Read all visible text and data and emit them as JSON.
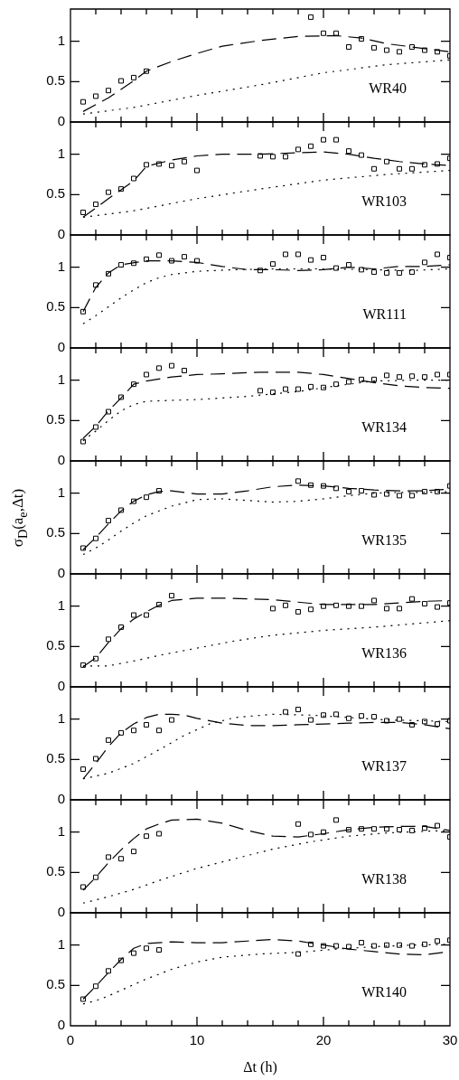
{
  "chart_data": [
    {
      "type": "line",
      "annotations": [
        "WR40"
      ],
      "xlim": [
        0,
        30
      ],
      "xticks": [
        0,
        {
          "value": 2,
          "label": null
        },
        {
          "value": 4,
          "label": null
        },
        {
          "value": 6,
          "label": null
        },
        {
          "value": 8,
          "label": null
        },
        10,
        {
          "value": 12,
          "label": null
        },
        {
          "value": 14,
          "label": null
        },
        {
          "value": 16,
          "label": null
        },
        {
          "value": 18,
          "label": null
        },
        20,
        {
          "value": 22,
          "label": null
        },
        {
          "value": 24,
          "label": null
        },
        {
          "value": 26,
          "label": null
        },
        {
          "value": 28,
          "label": null
        },
        30
      ],
      "ylim": [
        0,
        1.4
      ],
      "yticks": [
        0,
        0.5,
        1
      ],
      "tick_labels": "y",
      "series": [
        {
          "type": "scatter",
          "marker": "square",
          "color": "#000000",
          "x": [
            1,
            2,
            3,
            4,
            5,
            6,
            19,
            20,
            21,
            22,
            23,
            24,
            25,
            26,
            27,
            28,
            29,
            30
          ],
          "values": [
            0.25,
            0.32,
            0.39,
            0.51,
            0.55,
            0.63,
            1.3,
            1.1,
            1.1,
            0.93,
            1.03,
            0.92,
            0.89,
            0.87,
            0.93,
            0.89,
            0.87,
            0.82
          ]
        },
        {
          "line_style": "dashed",
          "marker": "none",
          "color": "#000000",
          "x": [
            1,
            3,
            5,
            6,
            8,
            10,
            12,
            15,
            18,
            21,
            23,
            25,
            27,
            30
          ],
          "values": [
            0.13,
            0.3,
            0.51,
            0.63,
            0.75,
            0.85,
            0.94,
            1.01,
            1.06,
            1.07,
            1.04,
            0.97,
            0.93,
            0.87
          ]
        },
        {
          "line_style": "dotted",
          "marker": "none",
          "color": "#000000",
          "x": [
            1,
            5,
            10,
            15,
            20,
            25,
            30
          ],
          "values": [
            0.1,
            0.18,
            0.33,
            0.46,
            0.61,
            0.71,
            0.77
          ]
        }
      ]
    },
    {
      "type": "line",
      "annotations": [
        "WR103"
      ],
      "xlim": [
        0,
        30
      ],
      "xticks": [
        0,
        {
          "value": 2,
          "label": null
        },
        {
          "value": 4,
          "label": null
        },
        {
          "value": 6,
          "label": null
        },
        {
          "value": 8,
          "label": null
        },
        10,
        {
          "value": 12,
          "label": null
        },
        {
          "value": 14,
          "label": null
        },
        {
          "value": 16,
          "label": null
        },
        {
          "value": 18,
          "label": null
        },
        20,
        {
          "value": 22,
          "label": null
        },
        {
          "value": 24,
          "label": null
        },
        {
          "value": 26,
          "label": null
        },
        {
          "value": 28,
          "label": null
        },
        30
      ],
      "ylim": [
        0,
        1.4
      ],
      "yticks": [
        0,
        0.5,
        1
      ],
      "tick_labels": "y",
      "series": [
        {
          "type": "scatter",
          "marker": "square",
          "color": "#000000",
          "x": [
            1,
            2,
            3,
            4,
            5,
            6,
            7,
            8,
            9,
            10,
            15,
            16,
            17,
            18,
            19,
            20,
            21,
            22,
            23,
            24,
            25,
            26,
            27,
            28,
            29,
            30
          ],
          "values": [
            0.28,
            0.38,
            0.53,
            0.57,
            0.7,
            0.87,
            0.88,
            0.86,
            0.91,
            0.8,
            0.98,
            0.97,
            0.97,
            1.06,
            1.1,
            1.18,
            1.18,
            1.04,
            0.99,
            0.82,
            0.91,
            0.82,
            0.82,
            0.87,
            0.88,
            0.95
          ]
        },
        {
          "line_style": "dashed",
          "marker": "none",
          "color": "#000000",
          "x": [
            1,
            3,
            5,
            6,
            8,
            10,
            12,
            15,
            18,
            20,
            22,
            24,
            26,
            28,
            30
          ],
          "values": [
            0.22,
            0.45,
            0.67,
            0.85,
            0.93,
            0.98,
            1.0,
            1.0,
            1.02,
            1.03,
            1.0,
            0.95,
            0.91,
            0.88,
            0.86
          ]
        },
        {
          "line_style": "dotted",
          "marker": "none",
          "color": "#000000",
          "x": [
            1,
            5,
            10,
            15,
            20,
            25,
            30
          ],
          "values": [
            0.22,
            0.3,
            0.45,
            0.57,
            0.68,
            0.75,
            0.8
          ]
        }
      ]
    },
    {
      "type": "line",
      "annotations": [
        "WR111"
      ],
      "xlim": [
        0,
        30
      ],
      "xticks": [
        0,
        {
          "value": 2,
          "label": null
        },
        {
          "value": 4,
          "label": null
        },
        {
          "value": 6,
          "label": null
        },
        {
          "value": 8,
          "label": null
        },
        10,
        {
          "value": 12,
          "label": null
        },
        {
          "value": 14,
          "label": null
        },
        {
          "value": 16,
          "label": null
        },
        {
          "value": 18,
          "label": null
        },
        20,
        {
          "value": 22,
          "label": null
        },
        {
          "value": 24,
          "label": null
        },
        {
          "value": 26,
          "label": null
        },
        {
          "value": 28,
          "label": null
        },
        30
      ],
      "ylim": [
        0,
        1.4
      ],
      "yticks": [
        0,
        0.5,
        1
      ],
      "tick_labels": "y",
      "series": [
        {
          "type": "scatter",
          "marker": "square",
          "color": "#000000",
          "x": [
            1,
            2,
            3,
            4,
            5,
            6,
            7,
            8,
            9,
            10,
            15,
            16,
            17,
            18,
            19,
            20,
            21,
            22,
            23,
            24,
            25,
            26,
            27,
            28,
            29,
            30
          ],
          "values": [
            0.45,
            0.78,
            0.92,
            1.03,
            1.05,
            1.1,
            1.15,
            1.08,
            1.13,
            1.08,
            0.96,
            1.04,
            1.16,
            1.16,
            1.09,
            1.12,
            0.99,
            1.03,
            0.97,
            0.94,
            0.93,
            0.93,
            0.94,
            1.06,
            1.16,
            1.12
          ]
        },
        {
          "line_style": "dashed",
          "marker": "none",
          "color": "#000000",
          "x": [
            1,
            2,
            3,
            4,
            6,
            8,
            10,
            12,
            14,
            16,
            18,
            20,
            22,
            24,
            26,
            28,
            30
          ],
          "values": [
            0.45,
            0.75,
            0.93,
            1.03,
            1.08,
            1.08,
            1.06,
            1.01,
            0.97,
            0.97,
            0.96,
            0.97,
            1.0,
            0.98,
            1.01,
            1.01,
            1.03
          ]
        },
        {
          "line_style": "dotted",
          "marker": "none",
          "color": "#000000",
          "x": [
            1,
            2,
            3,
            4,
            5,
            6,
            7,
            8,
            10,
            13,
            16,
            20,
            24,
            27,
            30
          ],
          "values": [
            0.3,
            0.4,
            0.51,
            0.62,
            0.72,
            0.81,
            0.87,
            0.91,
            0.95,
            0.97,
            0.98,
            0.98,
            0.97,
            0.96,
            0.98
          ]
        }
      ]
    },
    {
      "type": "line",
      "annotations": [
        "WR134"
      ],
      "xlim": [
        0,
        30
      ],
      "xticks": [
        0,
        {
          "value": 2,
          "label": null
        },
        {
          "value": 4,
          "label": null
        },
        {
          "value": 6,
          "label": null
        },
        {
          "value": 8,
          "label": null
        },
        10,
        {
          "value": 12,
          "label": null
        },
        {
          "value": 14,
          "label": null
        },
        {
          "value": 16,
          "label": null
        },
        {
          "value": 18,
          "label": null
        },
        20,
        {
          "value": 22,
          "label": null
        },
        {
          "value": 24,
          "label": null
        },
        {
          "value": 26,
          "label": null
        },
        {
          "value": 28,
          "label": null
        },
        30
      ],
      "ylim": [
        0,
        1.4
      ],
      "yticks": [
        0,
        0.5,
        1
      ],
      "tick_labels": "y",
      "series": [
        {
          "type": "scatter",
          "marker": "square",
          "color": "#000000",
          "x": [
            1,
            2,
            3,
            4,
            5,
            6,
            7,
            8,
            9,
            15,
            16,
            17,
            18,
            19,
            20,
            21,
            22,
            23,
            24,
            25,
            26,
            27,
            28,
            29,
            30
          ],
          "values": [
            0.24,
            0.42,
            0.61,
            0.79,
            0.95,
            1.07,
            1.15,
            1.18,
            1.12,
            0.87,
            0.85,
            0.89,
            0.89,
            0.92,
            0.91,
            0.95,
            0.98,
            1.01,
            1.01,
            1.06,
            1.04,
            1.05,
            1.04,
            1.07,
            1.07
          ]
        },
        {
          "line_style": "dashed",
          "marker": "none",
          "color": "#000000",
          "x": [
            1,
            2,
            3,
            4,
            5,
            6,
            8,
            10,
            12,
            15,
            18,
            20,
            22,
            24,
            26,
            28,
            30
          ],
          "values": [
            0.28,
            0.43,
            0.62,
            0.78,
            0.95,
            0.99,
            1.04,
            1.07,
            1.08,
            1.1,
            1.1,
            1.07,
            1.02,
            0.97,
            0.93,
            0.91,
            0.9
          ]
        },
        {
          "line_style": "dotted",
          "marker": "none",
          "color": "#000000",
          "x": [
            1,
            2,
            3,
            4,
            5,
            6,
            8,
            10,
            14,
            18,
            21,
            24,
            27,
            30
          ],
          "values": [
            0.25,
            0.37,
            0.5,
            0.62,
            0.7,
            0.74,
            0.75,
            0.76,
            0.8,
            0.86,
            0.93,
            0.99,
            1.0,
            1.0
          ]
        }
      ]
    },
    {
      "type": "line",
      "annotations": [
        "WR135"
      ],
      "ylabel": "σ$_{D}$(a$_{e}$,Δt)",
      "xlim": [
        0,
        30
      ],
      "xticks": [
        0,
        {
          "value": 2,
          "label": null
        },
        {
          "value": 4,
          "label": null
        },
        {
          "value": 6,
          "label": null
        },
        {
          "value": 8,
          "label": null
        },
        10,
        {
          "value": 12,
          "label": null
        },
        {
          "value": 14,
          "label": null
        },
        {
          "value": 16,
          "label": null
        },
        {
          "value": 18,
          "label": null
        },
        20,
        {
          "value": 22,
          "label": null
        },
        {
          "value": 24,
          "label": null
        },
        {
          "value": 26,
          "label": null
        },
        {
          "value": 28,
          "label": null
        },
        30
      ],
      "ylim": [
        0,
        1.4
      ],
      "yticks": [
        0,
        0.5,
        1
      ],
      "tick_labels": "y",
      "series": [
        {
          "type": "scatter",
          "marker": "square",
          "color": "#000000",
          "x": [
            1,
            2,
            3,
            4,
            5,
            6,
            7,
            18,
            19,
            20,
            21,
            22,
            23,
            24,
            25,
            26,
            27,
            28,
            29,
            30
          ],
          "values": [
            0.32,
            0.44,
            0.66,
            0.79,
            0.9,
            0.95,
            1.03,
            1.15,
            1.1,
            1.09,
            1.06,
            1.02,
            1.03,
            0.98,
            0.99,
            0.97,
            0.97,
            1.02,
            1.02,
            1.09
          ]
        },
        {
          "line_style": "dashed",
          "marker": "none",
          "color": "#000000",
          "x": [
            1,
            2,
            3,
            4,
            5,
            6,
            7,
            8,
            10,
            12,
            14,
            16,
            18,
            20,
            22,
            24,
            26,
            28,
            30
          ],
          "values": [
            0.3,
            0.45,
            0.62,
            0.78,
            0.9,
            0.98,
            1.02,
            1.03,
            0.99,
            0.99,
            1.03,
            1.08,
            1.1,
            1.09,
            1.06,
            1.04,
            1.03,
            1.03,
            1.05
          ]
        },
        {
          "line_style": "dotted",
          "marker": "none",
          "color": "#000000",
          "x": [
            1,
            2,
            3,
            4,
            5,
            6,
            8,
            10,
            12,
            14,
            16,
            18,
            20,
            22,
            24,
            26,
            28,
            30
          ],
          "values": [
            0.24,
            0.32,
            0.42,
            0.53,
            0.63,
            0.72,
            0.84,
            0.92,
            0.93,
            0.91,
            0.89,
            0.9,
            0.93,
            0.97,
            1.0,
            1.01,
            1.01,
            1.02
          ]
        }
      ]
    },
    {
      "type": "line",
      "annotations": [
        "WR136"
      ],
      "xlim": [
        0,
        30
      ],
      "xticks": [
        0,
        {
          "value": 2,
          "label": null
        },
        {
          "value": 4,
          "label": null
        },
        {
          "value": 6,
          "label": null
        },
        {
          "value": 8,
          "label": null
        },
        10,
        {
          "value": 12,
          "label": null
        },
        {
          "value": 14,
          "label": null
        },
        {
          "value": 16,
          "label": null
        },
        {
          "value": 18,
          "label": null
        },
        20,
        {
          "value": 22,
          "label": null
        },
        {
          "value": 24,
          "label": null
        },
        {
          "value": 26,
          "label": null
        },
        {
          "value": 28,
          "label": null
        },
        30
      ],
      "ylim": [
        0,
        1.4
      ],
      "yticks": [
        0,
        0.5,
        1
      ],
      "tick_labels": "y",
      "series": [
        {
          "type": "scatter",
          "marker": "square",
          "color": "#000000",
          "x": [
            1,
            2,
            3,
            4,
            5,
            6,
            7,
            8,
            16,
            17,
            18,
            19,
            20,
            21,
            22,
            23,
            24,
            25,
            26,
            27,
            28,
            29,
            30
          ],
          "values": [
            0.27,
            0.35,
            0.59,
            0.74,
            0.89,
            0.89,
            1.02,
            1.13,
            0.97,
            1.01,
            0.93,
            0.96,
            1.0,
            1.01,
            1.0,
            1.0,
            1.07,
            0.97,
            0.97,
            1.09,
            1.03,
            0.99,
            1.04
          ]
        },
        {
          "line_style": "dashed",
          "marker": "none",
          "color": "#000000",
          "x": [
            1,
            2,
            3,
            4,
            5,
            6,
            7,
            8,
            10,
            12,
            14,
            16,
            18,
            20,
            22,
            24,
            26,
            28,
            30
          ],
          "values": [
            0.25,
            0.36,
            0.55,
            0.72,
            0.84,
            0.93,
            1.01,
            1.07,
            1.1,
            1.1,
            1.09,
            1.08,
            1.05,
            1.02,
            1.02,
            1.02,
            1.04,
            1.06,
            1.07
          ]
        },
        {
          "line_style": "dotted",
          "marker": "none",
          "color": "#000000",
          "x": [
            1,
            3,
            5,
            7,
            10,
            13,
            16,
            20,
            24,
            27,
            30
          ],
          "values": [
            0.26,
            0.26,
            0.32,
            0.39,
            0.48,
            0.57,
            0.64,
            0.7,
            0.74,
            0.78,
            0.82
          ]
        }
      ]
    },
    {
      "type": "line",
      "annotations": [
        "WR137"
      ],
      "xlim": [
        0,
        30
      ],
      "xticks": [
        0,
        {
          "value": 2,
          "label": null
        },
        {
          "value": 4,
          "label": null
        },
        {
          "value": 6,
          "label": null
        },
        {
          "value": 8,
          "label": null
        },
        10,
        {
          "value": 12,
          "label": null
        },
        {
          "value": 14,
          "label": null
        },
        {
          "value": 16,
          "label": null
        },
        {
          "value": 18,
          "label": null
        },
        20,
        {
          "value": 22,
          "label": null
        },
        {
          "value": 24,
          "label": null
        },
        {
          "value": 26,
          "label": null
        },
        {
          "value": 28,
          "label": null
        },
        30
      ],
      "ylim": [
        0,
        1.4
      ],
      "yticks": [
        0,
        0.5,
        1
      ],
      "tick_labels": "y",
      "series": [
        {
          "type": "scatter",
          "marker": "square",
          "color": "#000000",
          "x": [
            1,
            2,
            3,
            4,
            5,
            6,
            7,
            8,
            17,
            18,
            19,
            20,
            21,
            22,
            23,
            24,
            25,
            26,
            27,
            28,
            29,
            30
          ],
          "values": [
            0.38,
            0.51,
            0.74,
            0.83,
            0.86,
            0.93,
            0.86,
            0.99,
            1.09,
            1.12,
            0.99,
            1.05,
            1.06,
            1.01,
            1.04,
            1.03,
            0.98,
            1.0,
            0.93,
            0.97,
            0.94,
            0.98
          ]
        },
        {
          "line_style": "dashed",
          "marker": "none",
          "color": "#000000",
          "x": [
            1,
            2,
            3,
            4,
            5,
            6,
            7,
            8,
            9,
            10,
            12,
            14,
            16,
            18,
            20,
            22,
            24,
            26,
            28,
            30
          ],
          "values": [
            0.26,
            0.45,
            0.66,
            0.83,
            0.94,
            1.02,
            1.06,
            1.06,
            1.05,
            1.01,
            0.95,
            0.92,
            0.92,
            0.93,
            0.94,
            0.95,
            0.96,
            0.96,
            0.93,
            0.88
          ]
        },
        {
          "line_style": "dotted",
          "marker": "none",
          "color": "#000000",
          "x": [
            1,
            3,
            5,
            7,
            9,
            11,
            13,
            16,
            19,
            22,
            25,
            28,
            30
          ],
          "values": [
            0.26,
            0.33,
            0.45,
            0.62,
            0.8,
            0.94,
            1.02,
            1.06,
            1.05,
            1.02,
            0.99,
            0.98,
            0.97
          ]
        }
      ]
    },
    {
      "type": "line",
      "annotations": [
        "WR138"
      ],
      "xlim": [
        0,
        30
      ],
      "xticks": [
        0,
        {
          "value": 2,
          "label": null
        },
        {
          "value": 4,
          "label": null
        },
        {
          "value": 6,
          "label": null
        },
        {
          "value": 8,
          "label": null
        },
        10,
        {
          "value": 12,
          "label": null
        },
        {
          "value": 14,
          "label": null
        },
        {
          "value": 16,
          "label": null
        },
        {
          "value": 18,
          "label": null
        },
        20,
        {
          "value": 22,
          "label": null
        },
        {
          "value": 24,
          "label": null
        },
        {
          "value": 26,
          "label": null
        },
        {
          "value": 28,
          "label": null
        },
        30
      ],
      "ylim": [
        0,
        1.4
      ],
      "yticks": [
        0,
        0.5,
        1
      ],
      "tick_labels": "y",
      "series": [
        {
          "type": "scatter",
          "marker": "square",
          "color": "#000000",
          "x": [
            1,
            2,
            3,
            4,
            5,
            6,
            7,
            18,
            19,
            20,
            21,
            22,
            23,
            24,
            25,
            26,
            27,
            28,
            29,
            30
          ],
          "values": [
            0.32,
            0.44,
            0.69,
            0.67,
            0.76,
            0.95,
            0.98,
            1.1,
            0.97,
            1.0,
            1.15,
            1.03,
            1.04,
            1.04,
            1.04,
            1.03,
            1.02,
            1.05,
            1.08,
            0.94
          ]
        },
        {
          "line_style": "dashed",
          "marker": "none",
          "color": "#000000",
          "x": [
            1,
            2,
            3,
            4,
            5,
            6,
            7,
            8,
            10,
            12,
            14,
            16,
            18,
            20,
            22,
            24,
            26,
            28,
            30
          ],
          "values": [
            0.28,
            0.44,
            0.62,
            0.78,
            0.92,
            1.04,
            1.1,
            1.15,
            1.16,
            1.11,
            1.02,
            0.95,
            0.94,
            0.98,
            1.03,
            1.06,
            1.07,
            1.07,
            1.02
          ]
        },
        {
          "line_style": "dotted",
          "marker": "none",
          "color": "#000000",
          "x": [
            1,
            3,
            5,
            7,
            10,
            13,
            16,
            19,
            22,
            25,
            28,
            30
          ],
          "values": [
            0.12,
            0.2,
            0.29,
            0.4,
            0.55,
            0.67,
            0.79,
            0.88,
            0.95,
            0.99,
            1.01,
            1.02
          ]
        }
      ]
    },
    {
      "type": "line",
      "annotations": [
        "WR140"
      ],
      "xlabel": "Δt (h)",
      "xlim": [
        0,
        30
      ],
      "xticks": [
        0,
        {
          "value": 2,
          "label": null
        },
        {
          "value": 4,
          "label": null
        },
        {
          "value": 6,
          "label": null
        },
        {
          "value": 8,
          "label": null
        },
        10,
        {
          "value": 12,
          "label": null
        },
        {
          "value": 14,
          "label": null
        },
        {
          "value": 16,
          "label": null
        },
        {
          "value": 18,
          "label": null
        },
        20,
        {
          "value": 22,
          "label": null
        },
        {
          "value": 24,
          "label": null
        },
        {
          "value": 26,
          "label": null
        },
        {
          "value": 28,
          "label": null
        },
        30
      ],
      "ylim": [
        0,
        1.4
      ],
      "yticks": [
        0,
        0.5,
        1
      ],
      "series": [
        {
          "type": "scatter",
          "marker": "square",
          "color": "#000000",
          "x": [
            1,
            2,
            3,
            4,
            5,
            6,
            7,
            18,
            19,
            20,
            21,
            22,
            23,
            24,
            25,
            26,
            27,
            28,
            29,
            30
          ],
          "values": [
            0.33,
            0.49,
            0.68,
            0.81,
            0.9,
            0.96,
            0.94,
            0.89,
            1.01,
            0.99,
            0.99,
            0.98,
            1.03,
            0.99,
            1.0,
            1.0,
            0.99,
            1.01,
            1.05,
            1.06
          ]
        },
        {
          "line_style": "dashed",
          "marker": "none",
          "color": "#000000",
          "x": [
            1,
            2,
            3,
            4,
            5,
            6,
            8,
            10,
            12,
            14,
            16,
            18,
            20,
            22,
            24,
            26,
            28,
            30
          ],
          "values": [
            0.33,
            0.49,
            0.66,
            0.82,
            0.96,
            1.02,
            1.04,
            1.03,
            1.03,
            1.05,
            1.07,
            1.05,
            1.0,
            0.95,
            0.92,
            0.89,
            0.88,
            0.92
          ]
        },
        {
          "line_style": "dotted",
          "marker": "none",
          "color": "#000000",
          "x": [
            1,
            2,
            3,
            4,
            5,
            6,
            8,
            10,
            12,
            15,
            18,
            21,
            24,
            27,
            30
          ],
          "values": [
            0.27,
            0.31,
            0.37,
            0.44,
            0.51,
            0.58,
            0.7,
            0.79,
            0.85,
            0.89,
            0.91,
            0.95,
            0.98,
            1.0,
            1.01
          ]
        }
      ]
    }
  ]
}
